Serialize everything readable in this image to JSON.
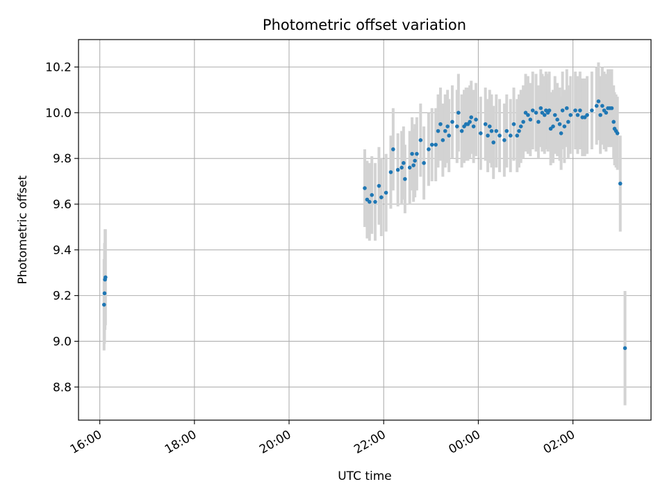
{
  "chart_data": {
    "type": "scatter",
    "title": "Photometric offset variation",
    "xlabel": "UTC time",
    "ylabel": "Photometric offset",
    "x_unit": "hours since 16:00 UTC",
    "xlim": [
      -0.45,
      11.65
    ],
    "ylim": [
      8.655,
      10.32
    ],
    "grid": true,
    "colors": {
      "marker": "#1f77b4",
      "errorbar": "#d3d3d3",
      "grid": "#b0b0b0"
    },
    "x_ticks": [
      {
        "x": 0,
        "label": "16:00"
      },
      {
        "x": 2,
        "label": "18:00"
      },
      {
        "x": 4,
        "label": "20:00"
      },
      {
        "x": 6,
        "label": "22:00"
      },
      {
        "x": 8,
        "label": "00:00"
      },
      {
        "x": 10,
        "label": "02:00"
      }
    ],
    "y_ticks": [
      {
        "y": 8.8,
        "label": "8.8"
      },
      {
        "y": 9.0,
        "label": "9.0"
      },
      {
        "y": 9.2,
        "label": "9.2"
      },
      {
        "y": 9.4,
        "label": "9.4"
      },
      {
        "y": 9.6,
        "label": "9.6"
      },
      {
        "y": 9.8,
        "label": "9.8"
      },
      {
        "y": 10.0,
        "label": "10.0"
      },
      {
        "y": 10.2,
        "label": "10.2"
      }
    ],
    "points": [
      {
        "x": 0.09,
        "y": 9.16,
        "err": 0.2
      },
      {
        "x": 0.1,
        "y": 9.21,
        "err": 0.22
      },
      {
        "x": 0.11,
        "y": 9.27,
        "err": 0.22
      },
      {
        "x": 0.12,
        "y": 9.28,
        "err": 0.21
      },
      {
        "x": 5.6,
        "y": 9.67,
        "err": 0.17
      },
      {
        "x": 5.65,
        "y": 9.62,
        "err": 0.17
      },
      {
        "x": 5.7,
        "y": 9.61,
        "err": 0.17
      },
      {
        "x": 5.75,
        "y": 9.64,
        "err": 0.17
      },
      {
        "x": 5.82,
        "y": 9.61,
        "err": 0.17
      },
      {
        "x": 5.9,
        "y": 9.68,
        "err": 0.17
      },
      {
        "x": 5.95,
        "y": 9.63,
        "err": 0.17
      },
      {
        "x": 6.05,
        "y": 9.65,
        "err": 0.17
      },
      {
        "x": 6.15,
        "y": 9.74,
        "err": 0.16
      },
      {
        "x": 6.2,
        "y": 9.84,
        "err": 0.18
      },
      {
        "x": 6.3,
        "y": 9.75,
        "err": 0.16
      },
      {
        "x": 6.38,
        "y": 9.76,
        "err": 0.16
      },
      {
        "x": 6.42,
        "y": 9.78,
        "err": 0.16
      },
      {
        "x": 6.45,
        "y": 9.71,
        "err": 0.15
      },
      {
        "x": 6.55,
        "y": 9.76,
        "err": 0.16
      },
      {
        "x": 6.6,
        "y": 9.82,
        "err": 0.16
      },
      {
        "x": 6.63,
        "y": 9.77,
        "err": 0.16
      },
      {
        "x": 6.66,
        "y": 9.79,
        "err": 0.16
      },
      {
        "x": 6.7,
        "y": 9.82,
        "err": 0.16
      },
      {
        "x": 6.78,
        "y": 9.88,
        "err": 0.16
      },
      {
        "x": 6.85,
        "y": 9.78,
        "err": 0.16
      },
      {
        "x": 6.95,
        "y": 9.84,
        "err": 0.16
      },
      {
        "x": 7.02,
        "y": 9.86,
        "err": 0.16
      },
      {
        "x": 7.1,
        "y": 9.86,
        "err": 0.16
      },
      {
        "x": 7.15,
        "y": 9.92,
        "err": 0.16
      },
      {
        "x": 7.2,
        "y": 9.95,
        "err": 0.16
      },
      {
        "x": 7.25,
        "y": 9.88,
        "err": 0.16
      },
      {
        "x": 7.3,
        "y": 9.92,
        "err": 0.16
      },
      {
        "x": 7.35,
        "y": 9.94,
        "err": 0.16
      },
      {
        "x": 7.38,
        "y": 9.9,
        "err": 0.16
      },
      {
        "x": 7.45,
        "y": 9.96,
        "err": 0.16
      },
      {
        "x": 7.55,
        "y": 9.94,
        "err": 0.16
      },
      {
        "x": 7.58,
        "y": 10.0,
        "err": 0.17
      },
      {
        "x": 7.65,
        "y": 9.92,
        "err": 0.16
      },
      {
        "x": 7.7,
        "y": 9.94,
        "err": 0.16
      },
      {
        "x": 7.74,
        "y": 9.95,
        "err": 0.16
      },
      {
        "x": 7.78,
        "y": 9.95,
        "err": 0.16
      },
      {
        "x": 7.82,
        "y": 9.96,
        "err": 0.16
      },
      {
        "x": 7.85,
        "y": 9.98,
        "err": 0.16
      },
      {
        "x": 7.9,
        "y": 9.94,
        "err": 0.16
      },
      {
        "x": 7.95,
        "y": 9.97,
        "err": 0.16
      },
      {
        "x": 8.05,
        "y": 9.91,
        "err": 0.16
      },
      {
        "x": 8.15,
        "y": 9.95,
        "err": 0.16
      },
      {
        "x": 8.2,
        "y": 9.9,
        "err": 0.16
      },
      {
        "x": 8.24,
        "y": 9.94,
        "err": 0.16
      },
      {
        "x": 8.28,
        "y": 9.92,
        "err": 0.16
      },
      {
        "x": 8.32,
        "y": 9.87,
        "err": 0.16
      },
      {
        "x": 8.38,
        "y": 9.92,
        "err": 0.16
      },
      {
        "x": 8.45,
        "y": 9.9,
        "err": 0.16
      },
      {
        "x": 8.55,
        "y": 9.88,
        "err": 0.16
      },
      {
        "x": 8.6,
        "y": 9.92,
        "err": 0.16
      },
      {
        "x": 8.68,
        "y": 9.9,
        "err": 0.16
      },
      {
        "x": 8.75,
        "y": 9.95,
        "err": 0.16
      },
      {
        "x": 8.82,
        "y": 9.9,
        "err": 0.16
      },
      {
        "x": 8.86,
        "y": 9.92,
        "err": 0.16
      },
      {
        "x": 8.9,
        "y": 9.94,
        "err": 0.16
      },
      {
        "x": 8.95,
        "y": 9.96,
        "err": 0.16
      },
      {
        "x": 9.0,
        "y": 10.0,
        "err": 0.17
      },
      {
        "x": 9.05,
        "y": 9.99,
        "err": 0.17
      },
      {
        "x": 9.1,
        "y": 9.97,
        "err": 0.16
      },
      {
        "x": 9.15,
        "y": 10.01,
        "err": 0.17
      },
      {
        "x": 9.22,
        "y": 10.0,
        "err": 0.17
      },
      {
        "x": 9.27,
        "y": 9.96,
        "err": 0.16
      },
      {
        "x": 9.32,
        "y": 10.02,
        "err": 0.17
      },
      {
        "x": 9.35,
        "y": 10.0,
        "err": 0.17
      },
      {
        "x": 9.4,
        "y": 9.99,
        "err": 0.17
      },
      {
        "x": 9.43,
        "y": 10.01,
        "err": 0.17
      },
      {
        "x": 9.47,
        "y": 10.0,
        "err": 0.17
      },
      {
        "x": 9.5,
        "y": 10.01,
        "err": 0.17
      },
      {
        "x": 9.53,
        "y": 9.93,
        "err": 0.16
      },
      {
        "x": 9.58,
        "y": 9.94,
        "err": 0.16
      },
      {
        "x": 9.62,
        "y": 9.99,
        "err": 0.17
      },
      {
        "x": 9.67,
        "y": 9.97,
        "err": 0.16
      },
      {
        "x": 9.72,
        "y": 9.95,
        "err": 0.16
      },
      {
        "x": 9.75,
        "y": 9.91,
        "err": 0.16
      },
      {
        "x": 9.78,
        "y": 10.01,
        "err": 0.17
      },
      {
        "x": 9.82,
        "y": 9.94,
        "err": 0.16
      },
      {
        "x": 9.87,
        "y": 10.02,
        "err": 0.17
      },
      {
        "x": 9.9,
        "y": 9.96,
        "err": 0.16
      },
      {
        "x": 9.95,
        "y": 9.99,
        "err": 0.17
      },
      {
        "x": 10.05,
        "y": 10.01,
        "err": 0.17
      },
      {
        "x": 10.1,
        "y": 9.99,
        "err": 0.17
      },
      {
        "x": 10.15,
        "y": 10.01,
        "err": 0.17
      },
      {
        "x": 10.2,
        "y": 9.98,
        "err": 0.17
      },
      {
        "x": 10.25,
        "y": 9.98,
        "err": 0.17
      },
      {
        "x": 10.3,
        "y": 9.99,
        "err": 0.17
      },
      {
        "x": 10.4,
        "y": 10.01,
        "err": 0.17
      },
      {
        "x": 10.5,
        "y": 10.03,
        "err": 0.17
      },
      {
        "x": 10.54,
        "y": 10.05,
        "err": 0.17
      },
      {
        "x": 10.58,
        "y": 9.99,
        "err": 0.17
      },
      {
        "x": 10.62,
        "y": 10.03,
        "err": 0.17
      },
      {
        "x": 10.66,
        "y": 10.01,
        "err": 0.17
      },
      {
        "x": 10.7,
        "y": 10.0,
        "err": 0.17
      },
      {
        "x": 10.74,
        "y": 10.02,
        "err": 0.17
      },
      {
        "x": 10.78,
        "y": 10.02,
        "err": 0.17
      },
      {
        "x": 10.82,
        "y": 10.02,
        "err": 0.17
      },
      {
        "x": 10.86,
        "y": 9.96,
        "err": 0.16
      },
      {
        "x": 10.88,
        "y": 9.93,
        "err": 0.16
      },
      {
        "x": 10.91,
        "y": 9.92,
        "err": 0.16
      },
      {
        "x": 10.94,
        "y": 9.91,
        "err": 0.16
      },
      {
        "x": 11.0,
        "y": 9.69,
        "err": 0.21
      },
      {
        "x": 11.1,
        "y": 8.97,
        "err": 0.25
      }
    ]
  }
}
